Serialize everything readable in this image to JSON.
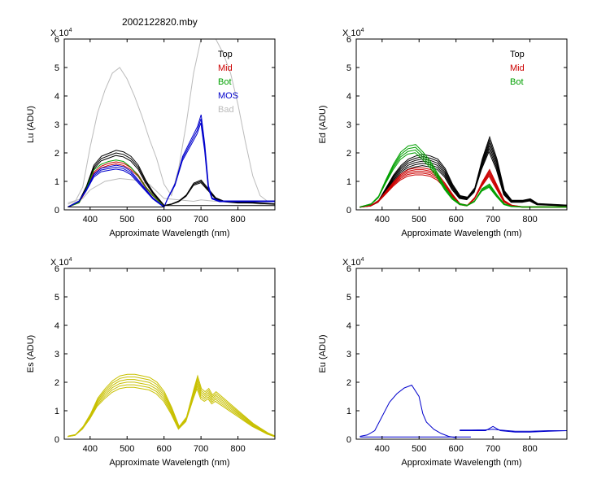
{
  "figure": {
    "title": "2002122820.mby"
  },
  "chart_data": [
    {
      "id": "lu",
      "type": "line",
      "ylabel": "Lu (ADU)",
      "xlabel": "Approximate Wavelength (nm)",
      "xlim": [
        330,
        900
      ],
      "ylim": [
        0,
        6
      ],
      "yscale": "X 10^4",
      "xticks": [
        400,
        500,
        600,
        700,
        800
      ],
      "yticks": [
        0,
        1,
        2,
        3,
        4,
        5,
        6
      ],
      "legend": {
        "placement": "top-right",
        "entries": [
          {
            "label": "Top",
            "color": "#000000"
          },
          {
            "label": "Mid",
            "color": "#cc0000"
          },
          {
            "label": "Bot",
            "color": "#00a000"
          },
          {
            "label": "MOS",
            "color": "#0000cc"
          },
          {
            "label": "Bad",
            "color": "#bbbbbb"
          }
        ]
      },
      "series": [
        {
          "name": "Bad",
          "color": "#bbbbbb",
          "copies": 1,
          "x": [
            340,
            360,
            380,
            400,
            420,
            440,
            460,
            480,
            500,
            520,
            540,
            560,
            580,
            600,
            620,
            640,
            660,
            680,
            700,
            720,
            740,
            760,
            780,
            800,
            820,
            840,
            860,
            880,
            900
          ],
          "y": [
            0.2,
            0.3,
            0.8,
            2.2,
            3.4,
            4.2,
            4.8,
            5.0,
            4.6,
            4.0,
            3.3,
            2.5,
            1.8,
            0.9,
            0.5,
            1.5,
            3.0,
            4.8,
            6.0,
            6.0,
            6.0,
            5.5,
            4.8,
            3.7,
            2.4,
            1.2,
            0.5,
            0.3,
            0.3
          ]
        },
        {
          "name": "Bad",
          "color": "#bbbbbb",
          "copies": 1,
          "x": [
            340,
            380,
            400,
            440,
            480,
            520,
            560,
            600,
            640,
            680,
            700,
            740,
            780,
            820,
            860,
            900
          ],
          "y": [
            0.25,
            0.4,
            0.7,
            1.0,
            1.1,
            1.05,
            0.9,
            0.4,
            0.35,
            0.3,
            0.35,
            0.3,
            0.3,
            0.25,
            0.2,
            0.2
          ]
        },
        {
          "name": "Top",
          "color": "#000000",
          "copies": 3,
          "x": [
            340,
            370,
            390,
            410,
            430,
            450,
            470,
            490,
            510,
            530,
            550,
            570,
            590,
            600,
            620,
            640,
            660,
            680,
            700,
            720,
            740,
            760,
            800,
            840,
            900
          ],
          "y": [
            0.1,
            0.3,
            0.8,
            1.5,
            1.8,
            1.9,
            2.0,
            1.95,
            1.8,
            1.5,
            1.0,
            0.6,
            0.3,
            0.15,
            0.2,
            0.3,
            0.5,
            0.9,
            1.0,
            0.7,
            0.4,
            0.3,
            0.25,
            0.25,
            0.2
          ]
        },
        {
          "name": "Mid",
          "color": "#cc0000",
          "copies": 2,
          "x": [
            340,
            370,
            390,
            410,
            430,
            450,
            470,
            490,
            510,
            530,
            550,
            570,
            590,
            600
          ],
          "y": [
            0.1,
            0.25,
            0.7,
            1.3,
            1.5,
            1.6,
            1.65,
            1.6,
            1.45,
            1.2,
            0.8,
            0.5,
            0.25,
            0.1
          ]
        },
        {
          "name": "Bot",
          "color": "#00a000",
          "copies": 1,
          "x": [
            340,
            370,
            390,
            410,
            430,
            450,
            470,
            490,
            510,
            530,
            550,
            570,
            590,
            600
          ],
          "y": [
            0.1,
            0.25,
            0.75,
            1.4,
            1.6,
            1.7,
            1.75,
            1.7,
            1.5,
            1.2,
            0.8,
            0.5,
            0.25,
            0.1
          ]
        },
        {
          "name": "MOS",
          "color": "#0000cc",
          "copies": 3,
          "x": [
            340,
            370,
            390,
            410,
            430,
            450,
            470,
            490,
            510,
            530,
            550,
            570,
            590,
            600,
            610,
            630,
            650,
            670,
            690,
            700,
            710,
            720,
            730,
            750,
            780,
            840,
            900
          ],
          "y": [
            0.1,
            0.3,
            0.7,
            1.2,
            1.4,
            1.45,
            1.5,
            1.45,
            1.3,
            1.0,
            0.7,
            0.4,
            0.2,
            0.1,
            0.4,
            0.9,
            1.8,
            2.3,
            2.8,
            3.2,
            2.2,
            0.8,
            0.4,
            0.3,
            0.3,
            0.3,
            0.3
          ]
        },
        {
          "name": "base",
          "color": "#000000",
          "copies": 1,
          "x": [
            340,
            600
          ],
          "y": [
            0.1,
            0.1
          ]
        },
        {
          "name": "base",
          "color": "#000000",
          "copies": 1,
          "x": [
            600,
            900
          ],
          "y": [
            0.15,
            0.15
          ]
        }
      ]
    },
    {
      "id": "ed",
      "type": "line",
      "ylabel": "Ed  (ADU)",
      "xlabel": "Approximate Wavelength (nm)",
      "xlim": [
        330,
        900
      ],
      "ylim": [
        0,
        6
      ],
      "yscale": "X 10^4",
      "xticks": [
        400,
        500,
        600,
        700,
        800
      ],
      "yticks": [
        0,
        1,
        2,
        3,
        4,
        5,
        6
      ],
      "legend": {
        "placement": "top-right",
        "entries": [
          {
            "label": "Top",
            "color": "#000000"
          },
          {
            "label": "Mid",
            "color": "#cc0000"
          },
          {
            "label": "Bot",
            "color": "#00a000"
          }
        ]
      },
      "series": [
        {
          "name": "Top",
          "color": "#000000",
          "copies": 6,
          "x": [
            340,
            370,
            390,
            410,
            430,
            450,
            470,
            490,
            510,
            530,
            550,
            570,
            590,
            610,
            630,
            650,
            670,
            690,
            710,
            730,
            750,
            780,
            800,
            820,
            900
          ],
          "y": [
            0.1,
            0.15,
            0.3,
            0.7,
            1.1,
            1.4,
            1.6,
            1.7,
            1.75,
            1.7,
            1.6,
            1.3,
            0.8,
            0.45,
            0.4,
            0.7,
            1.6,
            2.3,
            1.6,
            0.6,
            0.3,
            0.3,
            0.35,
            0.2,
            0.15
          ]
        },
        {
          "name": "Mid",
          "color": "#cc0000",
          "copies": 5,
          "x": [
            340,
            370,
            390,
            410,
            430,
            450,
            470,
            490,
            510,
            530,
            550,
            570,
            590,
            610,
            630,
            650,
            670,
            690,
            710,
            730,
            750,
            780,
            900
          ],
          "y": [
            0.1,
            0.15,
            0.3,
            0.6,
            0.9,
            1.15,
            1.3,
            1.35,
            1.35,
            1.3,
            1.15,
            0.85,
            0.5,
            0.2,
            0.15,
            0.4,
            0.9,
            1.3,
            0.8,
            0.3,
            0.15,
            0.1,
            0.1
          ]
        },
        {
          "name": "Bot",
          "color": "#00a000",
          "copies": 4,
          "x": [
            340,
            370,
            390,
            410,
            430,
            450,
            470,
            490,
            510,
            530,
            550,
            570,
            590,
            610,
            630,
            650,
            670,
            690,
            710,
            730,
            750,
            780,
            900
          ],
          "y": [
            0.1,
            0.2,
            0.45,
            1.0,
            1.5,
            1.9,
            2.1,
            2.15,
            1.9,
            1.6,
            1.2,
            0.75,
            0.4,
            0.2,
            0.15,
            0.3,
            0.7,
            0.85,
            0.5,
            0.2,
            0.12,
            0.1,
            0.1
          ]
        }
      ]
    },
    {
      "id": "es",
      "type": "line",
      "ylabel": "Es  (ADU)",
      "xlabel": "Approximate Wavelength (nm)",
      "xlim": [
        330,
        900
      ],
      "ylim": [
        0,
        6
      ],
      "yscale": "X 10^4",
      "xticks": [
        400,
        500,
        600,
        700,
        800
      ],
      "yticks": [
        0,
        1,
        2,
        3,
        4,
        5,
        6
      ],
      "legend": {
        "placement": "none",
        "entries": []
      },
      "series": [
        {
          "name": "Es",
          "color": "#c8c000",
          "copies": 6,
          "x": [
            340,
            360,
            380,
            400,
            420,
            440,
            460,
            480,
            500,
            520,
            540,
            560,
            580,
            600,
            620,
            640,
            660,
            680,
            690,
            700,
            710,
            720,
            730,
            740,
            760,
            780,
            800,
            820,
            840,
            860,
            880,
            900
          ],
          "y": [
            0.1,
            0.15,
            0.4,
            0.8,
            1.3,
            1.6,
            1.85,
            2.0,
            2.05,
            2.05,
            2.0,
            1.95,
            1.8,
            1.5,
            1.0,
            0.4,
            0.7,
            1.6,
            2.0,
            1.6,
            1.5,
            1.6,
            1.4,
            1.5,
            1.3,
            1.1,
            0.9,
            0.7,
            0.5,
            0.35,
            0.2,
            0.1
          ]
        }
      ]
    },
    {
      "id": "eu",
      "type": "line",
      "ylabel": "Eu  (ADU)",
      "xlabel": "Approximate Wavelength (nm)",
      "xlim": [
        330,
        900
      ],
      "ylim": [
        0,
        6
      ],
      "yscale": "X 10^4",
      "xticks": [
        400,
        500,
        600,
        700,
        800
      ],
      "yticks": [
        0,
        1,
        2,
        3,
        4,
        5,
        6
      ],
      "legend": {
        "placement": "none",
        "entries": []
      },
      "series": [
        {
          "name": "Eu",
          "color": "#0000cc",
          "copies": 1,
          "x": [
            340,
            360,
            380,
            400,
            420,
            440,
            460,
            480,
            500,
            510,
            520,
            540,
            560,
            580,
            600
          ],
          "y": [
            0.1,
            0.15,
            0.3,
            0.8,
            1.3,
            1.6,
            1.8,
            1.9,
            1.5,
            0.9,
            0.6,
            0.35,
            0.2,
            0.1,
            0.05
          ]
        },
        {
          "name": "Eu",
          "color": "#0000cc",
          "copies": 1,
          "x": [
            340,
            640
          ],
          "y": [
            0.08,
            0.08
          ]
        },
        {
          "name": "Eu",
          "color": "#0000cc",
          "copies": 1,
          "x": [
            610,
            640,
            680,
            700,
            720,
            760,
            800,
            850,
            900
          ],
          "y": [
            0.3,
            0.3,
            0.3,
            0.45,
            0.3,
            0.25,
            0.25,
            0.28,
            0.3
          ]
        },
        {
          "name": "Eu",
          "color": "#0000cc",
          "copies": 1,
          "x": [
            610,
            640,
            680,
            700,
            720,
            760,
            800,
            850,
            900
          ],
          "y": [
            0.32,
            0.32,
            0.33,
            0.35,
            0.32,
            0.28,
            0.28,
            0.3,
            0.3
          ]
        }
      ]
    }
  ]
}
